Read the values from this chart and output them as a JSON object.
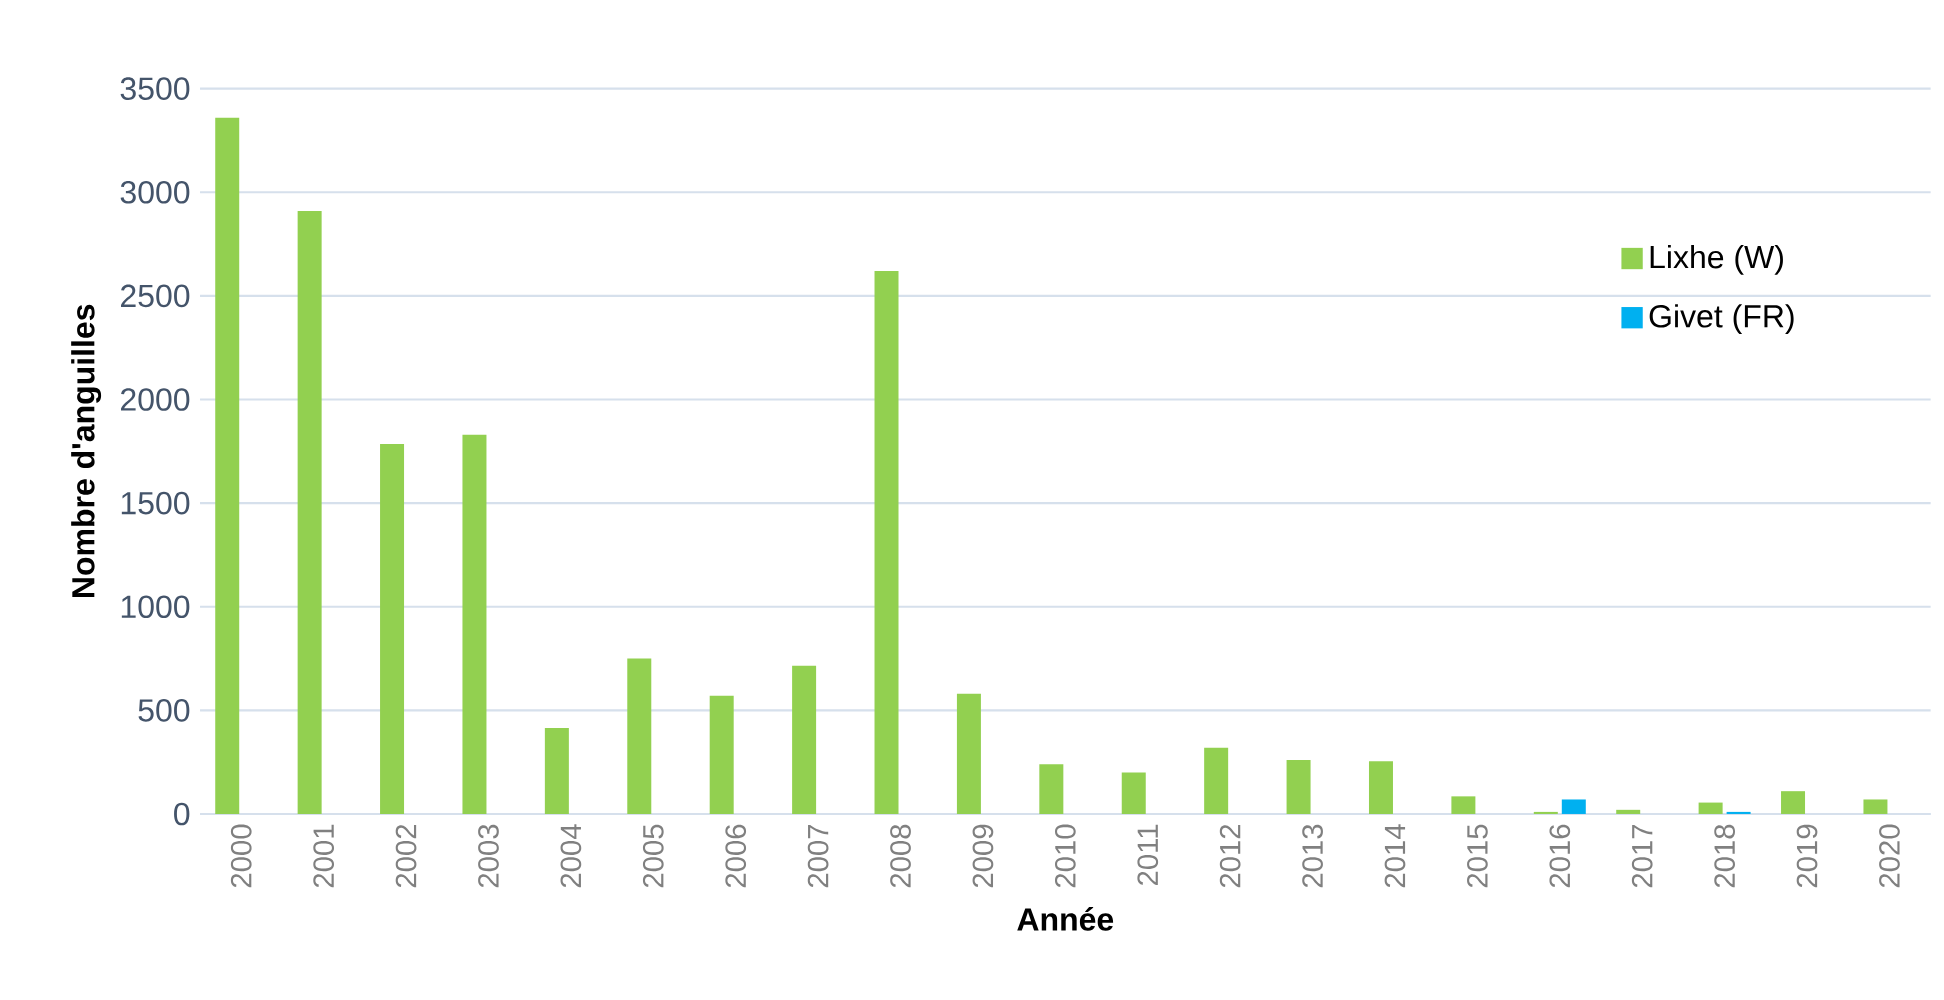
{
  "chart_data": {
    "type": "bar",
    "xlabel": "Année",
    "ylabel": "Nombre d'anguilles",
    "categories": [
      "2000",
      "2001",
      "2002",
      "2003",
      "2004",
      "2005",
      "2006",
      "2007",
      "2008",
      "2009",
      "2010",
      "2011",
      "2012",
      "2013",
      "2014",
      "2015",
      "2016",
      "2017",
      "2018",
      "2019",
      "2020"
    ],
    "series": [
      {
        "name": "Lixhe (W)",
        "color": "#92d050",
        "values": [
          3360,
          2910,
          1785,
          1830,
          415,
          750,
          570,
          715,
          2620,
          580,
          240,
          200,
          320,
          260,
          255,
          85,
          10,
          20,
          55,
          110,
          70
        ]
      },
      {
        "name": "Givet (FR)",
        "color": "#00b0f0",
        "values": [
          null,
          null,
          null,
          null,
          null,
          null,
          null,
          null,
          null,
          null,
          null,
          null,
          null,
          null,
          null,
          null,
          70,
          null,
          10,
          null,
          null
        ]
      }
    ],
    "ylim": [
      0,
      3500
    ],
    "yticks": [
      0,
      500,
      1000,
      1500,
      2000,
      2500,
      3000,
      3500
    ],
    "grid": "y",
    "legend": "top right"
  }
}
